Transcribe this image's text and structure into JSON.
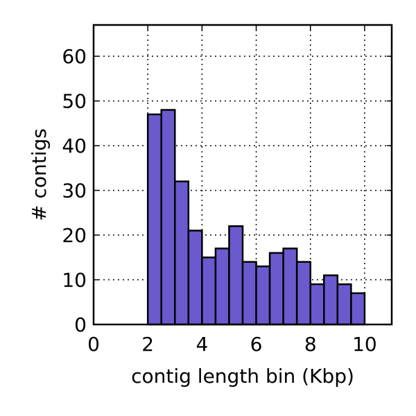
{
  "chart_data": {
    "type": "bar",
    "title": "",
    "xlabel": "contig length bin (Kbp)",
    "ylabel": "# contigs",
    "bin_width": 0.5,
    "bin_starts": [
      0,
      0.5,
      1.0,
      1.5,
      2.0,
      2.5,
      3.0,
      3.5,
      4.0,
      4.5,
      5.0,
      5.5,
      6.0,
      6.5,
      7.0,
      7.5,
      8.0,
      8.5,
      9.0,
      9.5,
      10.0,
      10.5
    ],
    "values": [
      0,
      0,
      0,
      0,
      47,
      48,
      32,
      21,
      15,
      17,
      22,
      14,
      13,
      16,
      17,
      14,
      9,
      11,
      9,
      7,
      0,
      0
    ],
    "xlim": [
      0,
      11
    ],
    "ylim": [
      0,
      67
    ],
    "xticks": [
      0,
      2,
      4,
      6,
      8,
      10
    ],
    "yticks": [
      0,
      10,
      20,
      30,
      40,
      50,
      60
    ],
    "grid": true,
    "legend": "none",
    "bar_color": "#6a5acd"
  }
}
